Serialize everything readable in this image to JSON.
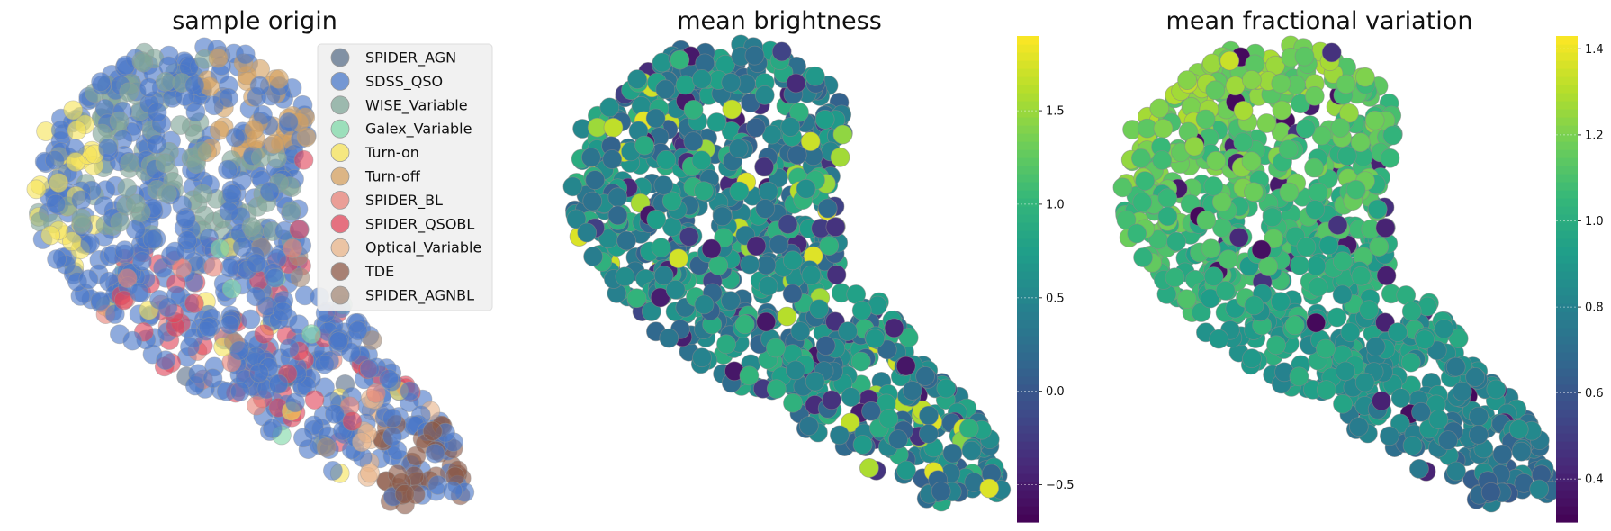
{
  "chart_data": [
    {
      "type": "scatter",
      "title": "sample origin",
      "legend": {
        "placement": "top-right",
        "entries": [
          {
            "name": "SPIDER_AGN",
            "color": "#5b7089"
          },
          {
            "name": "SDSS_QSO",
            "color": "#4a78c8"
          },
          {
            "name": "WISE_Variable",
            "color": "#7fa597"
          },
          {
            "name": "Galex_Variable",
            "color": "#7fd8a8"
          },
          {
            "name": "Turn-on",
            "color": "#f5e35a"
          },
          {
            "name": "Turn-off",
            "color": "#d4a060"
          },
          {
            "name": "SPIDER_BL",
            "color": "#e78278"
          },
          {
            "name": "SPIDER_QSOBL",
            "color": "#e0455a"
          },
          {
            "name": "Optical_Variable",
            "color": "#e8b48a"
          },
          {
            "name": "TDE",
            "color": "#8d5a48"
          },
          {
            "name": "SPIDER_AGNBL",
            "color": "#a48a78"
          }
        ]
      },
      "grid": false,
      "axes_visible": false
    },
    {
      "type": "scatter",
      "title": "mean brightness",
      "colormap": "viridis",
      "colorbar": {
        "range": [
          -0.7,
          1.9
        ],
        "ticks": [
          {
            "value": -0.5,
            "label": "−0.5"
          },
          {
            "value": 0.0,
            "label": "0.0"
          },
          {
            "value": 0.5,
            "label": "0.5"
          },
          {
            "value": 1.0,
            "label": "1.0"
          },
          {
            "value": 1.5,
            "label": "1.5"
          }
        ]
      },
      "grid": false,
      "axes_visible": false
    },
    {
      "type": "scatter",
      "title": "mean fractional variation",
      "colormap": "viridis",
      "colorbar": {
        "range": [
          0.3,
          1.43
        ],
        "ticks": [
          {
            "value": 0.4,
            "label": "0.4"
          },
          {
            "value": 0.6,
            "label": "0.6"
          },
          {
            "value": 0.8,
            "label": "0.8"
          },
          {
            "value": 1.0,
            "label": "1.0"
          },
          {
            "value": 1.2,
            "label": "1.2"
          },
          {
            "value": 1.4,
            "label": "1.4"
          }
        ]
      },
      "grid": false,
      "axes_visible": false
    }
  ]
}
